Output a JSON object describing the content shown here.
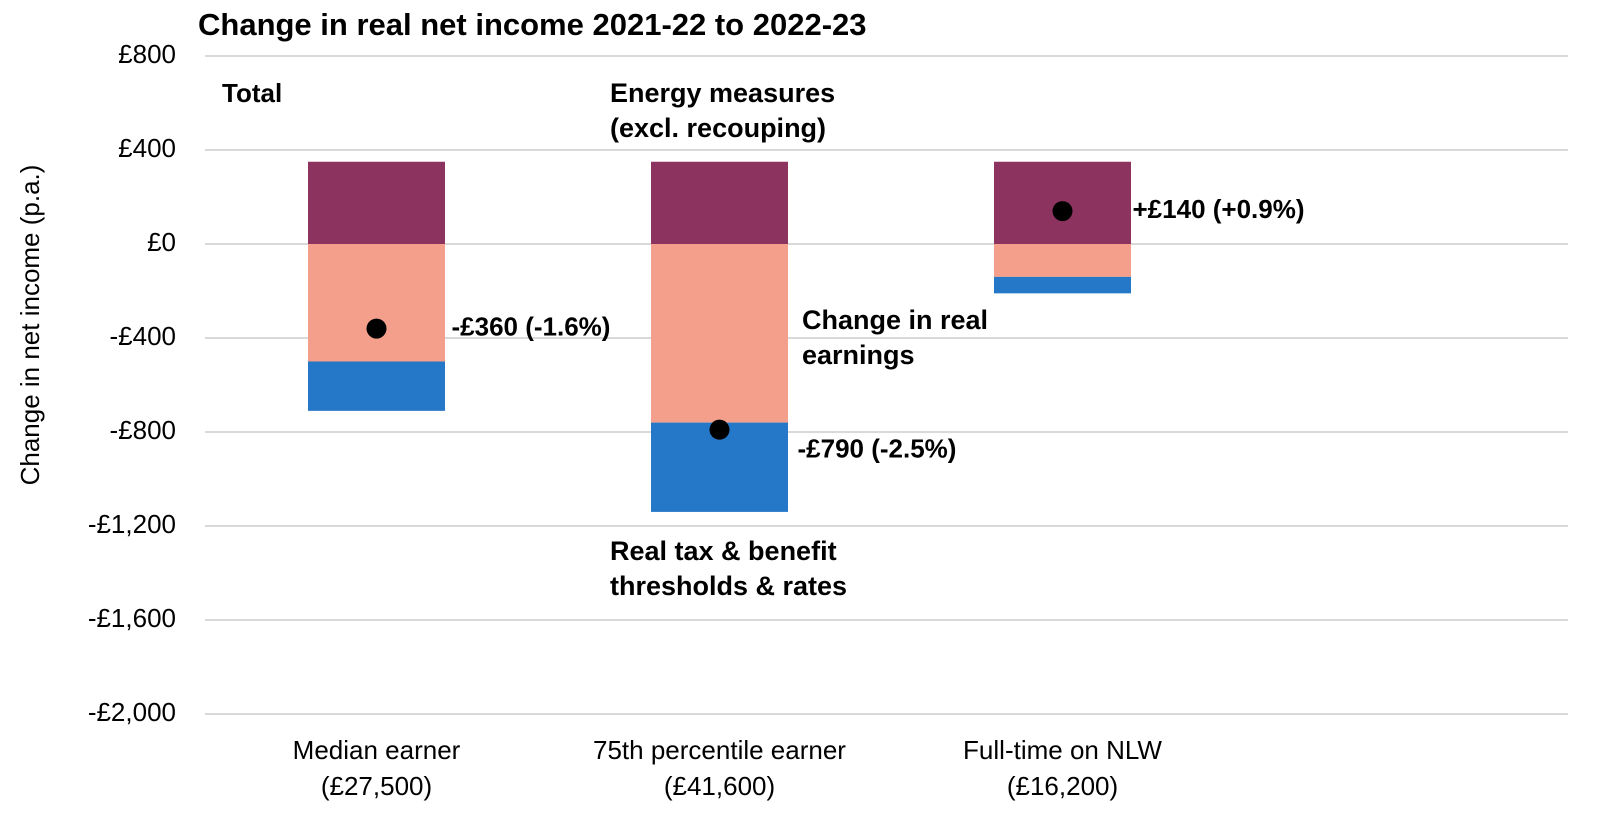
{
  "chart_data": {
    "type": "stacked-bar",
    "title": "Change in real net income 2021-22 to 2022-23",
    "y_label": "Change in net income (p.a.)",
    "annotation": "Total",
    "categories": [
      [
        "Median earner",
        "(£27,500)"
      ],
      [
        "75th percentile earner",
        "(£41,600)"
      ],
      [
        "Full-time on NLW",
        "(£16,200)"
      ]
    ],
    "series": [
      {
        "name": "Energy measures (excl. recouping)",
        "color": "#8c3360",
        "values": [
          350,
          350,
          350
        ]
      },
      {
        "name": "Change in real earnings",
        "color": "#f39f8b",
        "values": [
          -500,
          -760,
          -140
        ]
      },
      {
        "name": "Real tax & benefit thresholds & rates",
        "color": "#2577c8",
        "values": [
          -210,
          -380,
          -70
        ]
      }
    ],
    "totals": {
      "color": "#000000",
      "values": [
        -360,
        -790,
        140
      ],
      "value_labels": [
        "-£360 (-1.6%)",
        "-£790 (-2.5%)",
        "+£140 (+0.9%)"
      ]
    },
    "ylim": [
      -2000,
      800
    ],
    "yticks": [
      {
        "value": -2000,
        "label": "-£2,000"
      },
      {
        "value": -1600,
        "label": "-£1,600"
      },
      {
        "value": -1200,
        "label": "-£1,200"
      },
      {
        "value": -800,
        "label": "-£800"
      },
      {
        "value": -400,
        "label": "-£400"
      },
      {
        "value": 0,
        "label": "£0"
      },
      {
        "value": 400,
        "label": "£400"
      },
      {
        "value": 800,
        "label": "£800"
      }
    ],
    "grid": true
  }
}
